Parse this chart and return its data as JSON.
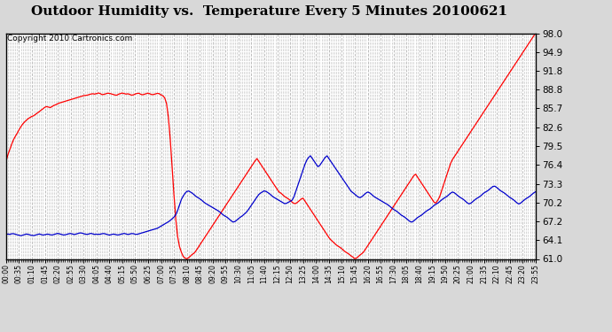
{
  "title": "Outdoor Humidity vs.  Temperature Every 5 Minutes 20100621",
  "copyright": "Copyright 2010 Cartronics.com",
  "ymin": 61.0,
  "ymax": 98.0,
  "yticks": [
    61.0,
    64.1,
    67.2,
    70.2,
    73.3,
    76.4,
    79.5,
    82.6,
    85.7,
    88.8,
    91.8,
    94.9,
    98.0
  ],
  "background_color": "#d8d8d8",
  "plot_bg_color": "#ffffff",
  "line_color_temp": "#ff0000",
  "line_color_humidity": "#0000cc",
  "grid_color": "#aaaaaa",
  "title_fontsize": 11,
  "copyright_fontsize": 6.5,
  "temp": [
    77.0,
    78.2,
    79.1,
    80.0,
    80.8,
    81.3,
    81.9,
    82.5,
    83.0,
    83.4,
    83.7,
    84.0,
    84.2,
    84.4,
    84.5,
    84.8,
    85.0,
    85.3,
    85.5,
    85.8,
    86.0,
    85.9,
    85.8,
    86.0,
    86.2,
    86.3,
    86.5,
    86.6,
    86.7,
    86.8,
    86.9,
    87.0,
    87.1,
    87.2,
    87.3,
    87.4,
    87.5,
    87.6,
    87.7,
    87.8,
    87.8,
    87.9,
    88.0,
    88.1,
    88.0,
    88.1,
    88.2,
    88.1,
    87.9,
    88.0,
    88.1,
    88.2,
    88.1,
    88.0,
    87.9,
    87.8,
    88.0,
    88.1,
    88.2,
    88.1,
    88.0,
    88.1,
    87.9,
    87.8,
    88.0,
    88.1,
    88.2,
    88.0,
    87.9,
    88.0,
    88.1,
    88.2,
    88.0,
    87.9,
    88.0,
    88.1,
    88.2,
    87.9,
    87.8,
    87.5,
    86.5,
    84.0,
    80.0,
    75.0,
    70.0,
    66.0,
    63.5,
    62.5,
    61.5,
    61.2,
    61.0,
    61.2,
    61.5,
    61.8,
    62.0,
    62.5,
    63.0,
    63.5,
    64.0,
    64.5,
    65.0,
    65.5,
    66.0,
    66.5,
    67.0,
    67.5,
    68.0,
    68.5,
    69.0,
    69.5,
    70.0,
    70.5,
    71.0,
    71.5,
    72.0,
    72.5,
    73.0,
    73.5,
    74.0,
    74.5,
    75.0,
    75.5,
    76.0,
    76.5,
    77.0,
    77.5,
    77.0,
    76.5,
    76.0,
    75.5,
    75.0,
    74.5,
    74.0,
    73.5,
    73.0,
    72.5,
    72.0,
    71.8,
    71.5,
    71.2,
    71.0,
    70.8,
    70.5,
    70.2,
    70.0,
    70.2,
    70.5,
    70.8,
    71.0,
    70.5,
    70.0,
    69.5,
    69.0,
    68.5,
    68.0,
    67.5,
    67.0,
    66.5,
    66.0,
    65.5,
    65.0,
    64.5,
    64.1,
    63.8,
    63.5,
    63.2,
    63.0,
    62.8,
    62.5,
    62.2,
    62.0,
    61.8,
    61.5,
    61.3,
    61.0,
    61.2,
    61.5,
    61.8,
    62.0,
    62.5,
    63.0,
    63.5,
    64.0,
    64.5,
    65.0,
    65.5,
    66.0,
    66.5,
    67.0,
    67.5,
    68.0,
    68.5,
    69.0,
    69.5,
    70.0,
    70.5,
    71.0,
    71.5,
    72.0,
    72.5,
    73.0,
    73.5,
    74.0,
    74.5,
    75.0,
    74.5,
    74.0,
    73.5,
    73.0,
    72.5,
    72.0,
    71.5,
    71.0,
    70.5,
    70.0,
    70.5,
    71.0,
    72.0,
    73.0,
    74.0,
    75.0,
    76.0,
    77.0,
    77.5,
    78.0,
    78.5,
    79.0,
    79.5,
    80.0,
    80.5,
    81.0,
    81.5,
    82.0,
    82.5,
    83.0,
    83.5,
    84.0,
    84.5,
    85.0,
    85.5,
    86.0,
    86.5,
    87.0,
    87.5,
    88.0,
    88.5,
    89.0,
    89.5,
    90.0,
    90.5,
    91.0,
    91.5,
    92.0,
    92.5,
    93.0,
    93.5,
    94.0,
    94.5,
    95.0,
    95.5,
    96.0,
    96.5,
    97.0,
    97.5,
    98.0
  ],
  "humidity": [
    65.0,
    65.1,
    65.0,
    65.2,
    65.1,
    65.0,
    64.9,
    64.8,
    64.9,
    65.0,
    65.1,
    65.0,
    64.9,
    64.8,
    64.9,
    65.0,
    65.1,
    65.0,
    64.9,
    65.0,
    65.1,
    65.0,
    64.9,
    65.0,
    65.1,
    65.2,
    65.1,
    65.0,
    64.9,
    65.0,
    65.1,
    65.2,
    65.1,
    65.0,
    65.1,
    65.2,
    65.3,
    65.2,
    65.1,
    65.0,
    65.1,
    65.2,
    65.1,
    65.0,
    65.1,
    65.0,
    65.1,
    65.2,
    65.1,
    65.0,
    64.9,
    65.0,
    65.1,
    65.0,
    64.9,
    65.0,
    65.1,
    65.2,
    65.1,
    65.0,
    65.1,
    65.2,
    65.1,
    65.0,
    65.1,
    65.2,
    65.3,
    65.4,
    65.5,
    65.6,
    65.7,
    65.8,
    65.9,
    66.0,
    66.2,
    66.4,
    66.6,
    66.8,
    67.0,
    67.2,
    67.5,
    67.8,
    68.2,
    69.0,
    70.0,
    71.0,
    71.5,
    72.0,
    72.2,
    72.0,
    71.8,
    71.5,
    71.2,
    71.0,
    70.8,
    70.5,
    70.2,
    70.0,
    69.8,
    69.6,
    69.4,
    69.2,
    69.0,
    68.8,
    68.5,
    68.2,
    68.0,
    67.8,
    67.5,
    67.2,
    67.0,
    67.2,
    67.5,
    67.8,
    68.0,
    68.3,
    68.6,
    69.0,
    69.5,
    70.0,
    70.5,
    71.0,
    71.5,
    71.8,
    72.0,
    72.2,
    72.0,
    71.8,
    71.5,
    71.2,
    71.0,
    70.8,
    70.6,
    70.4,
    70.2,
    70.0,
    70.2,
    70.4,
    70.5,
    71.0,
    72.0,
    73.0,
    74.0,
    75.0,
    76.0,
    77.0,
    77.5,
    78.0,
    77.5,
    77.0,
    76.5,
    76.0,
    76.5,
    77.0,
    77.5,
    78.0,
    77.5,
    77.0,
    76.5,
    76.0,
    75.5,
    75.0,
    74.5,
    74.0,
    73.5,
    73.0,
    72.5,
    72.0,
    71.8,
    71.5,
    71.2,
    71.0,
    71.2,
    71.5,
    71.8,
    72.0,
    71.8,
    71.5,
    71.2,
    71.0,
    70.8,
    70.6,
    70.4,
    70.2,
    70.0,
    69.8,
    69.5,
    69.2,
    69.0,
    68.8,
    68.5,
    68.2,
    68.0,
    67.8,
    67.5,
    67.2,
    67.0,
    67.2,
    67.5,
    67.8,
    68.0,
    68.2,
    68.5,
    68.8,
    69.0,
    69.2,
    69.5,
    69.8,
    70.0,
    70.2,
    70.5,
    70.8,
    71.0,
    71.2,
    71.5,
    71.8,
    72.0,
    71.8,
    71.5,
    71.2,
    71.0,
    70.8,
    70.5,
    70.2,
    70.0,
    70.2,
    70.5,
    70.8,
    71.0,
    71.2,
    71.5,
    71.8,
    72.0,
    72.2,
    72.5,
    72.8,
    73.0,
    72.8,
    72.5,
    72.2,
    72.0,
    71.8,
    71.5,
    71.2,
    71.0,
    70.8,
    70.5,
    70.2,
    70.0,
    70.2,
    70.5,
    70.8,
    71.0,
    71.2,
    71.5,
    71.8,
    72.0
  ]
}
